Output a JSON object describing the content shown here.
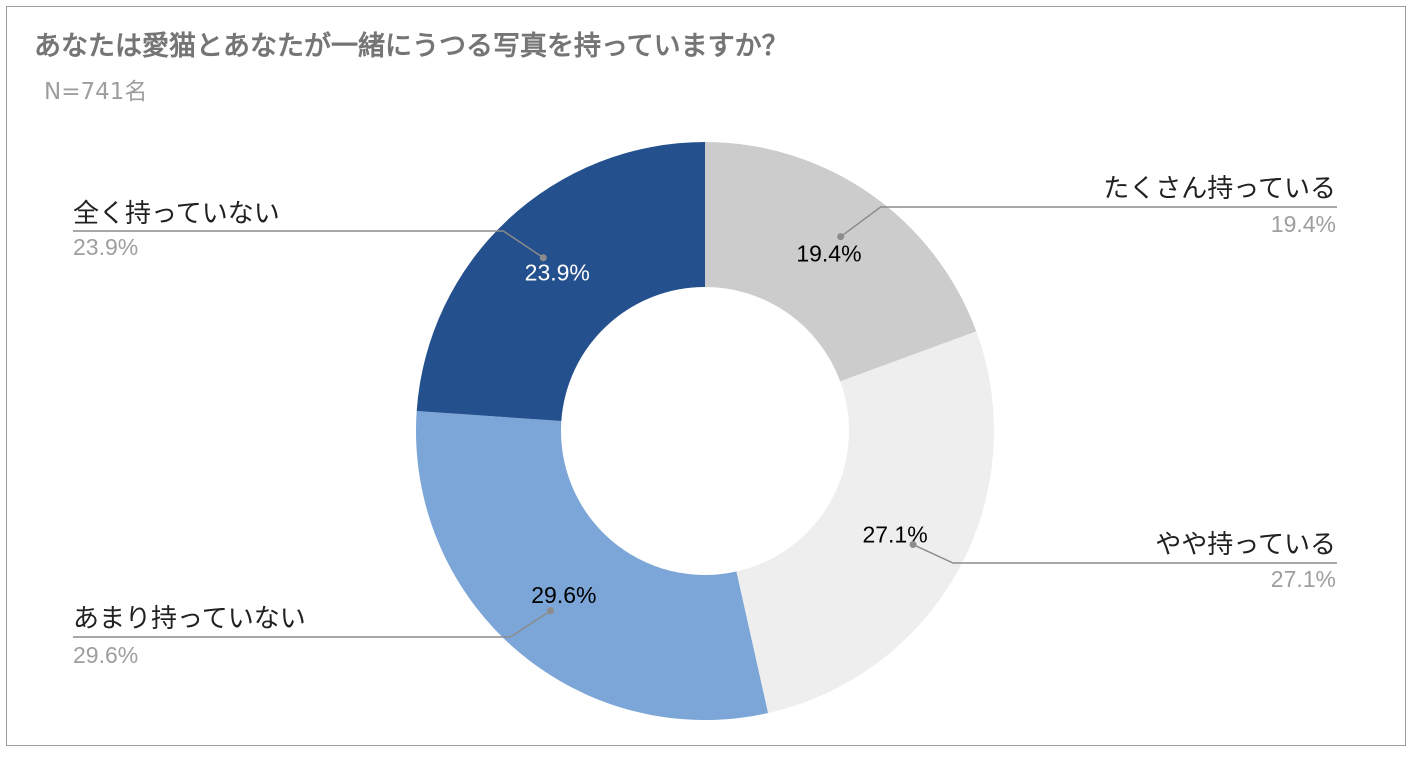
{
  "chart_data": {
    "type": "pie",
    "title": "あなたは愛猫とあなたが一緒にうつる写真を持っていますか？",
    "subtitle": "N=741名",
    "categories": [
      "たくさん持っている",
      "やや持っている",
      "あまり持っていない",
      "全く持っていない"
    ],
    "values": [
      19.4,
      27.1,
      29.6,
      23.9
    ],
    "value_labels": [
      "19.4%",
      "27.1%",
      "29.6%",
      "23.9%"
    ],
    "colors": [
      "#cccccc",
      "#eeeeee",
      "#7ca6d8",
      "#24508e"
    ],
    "inner_label_colors": [
      "#000000",
      "#000000",
      "#000000",
      "#ffffff"
    ],
    "legend": "callouts"
  }
}
